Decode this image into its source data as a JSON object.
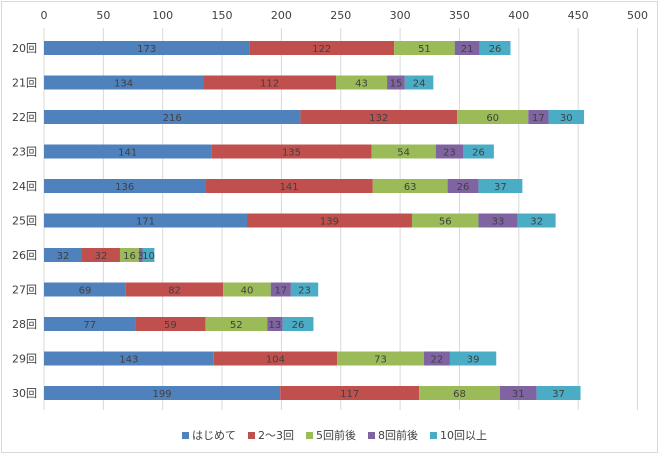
{
  "chart_data": {
    "type": "bar",
    "orientation": "horizontal",
    "stacked": true,
    "categories": [
      "20回",
      "21回",
      "22回",
      "23回",
      "24回",
      "25回",
      "26回",
      "27回",
      "28回",
      "29回",
      "30回"
    ],
    "series": [
      {
        "name": "はじめて",
        "color": "#4f81bd",
        "values": [
          173,
          134,
          216,
          141,
          136,
          171,
          32,
          69,
          77,
          143,
          199
        ]
      },
      {
        "name": "2～3回",
        "color": "#c0504d",
        "values": [
          122,
          112,
          132,
          135,
          141,
          139,
          32,
          82,
          59,
          104,
          117
        ]
      },
      {
        "name": "5回前後",
        "color": "#9bbb59",
        "values": [
          51,
          43,
          60,
          54,
          63,
          56,
          16,
          40,
          52,
          73,
          68
        ]
      },
      {
        "name": "8回前後",
        "color": "#8064a2",
        "values": [
          21,
          15,
          17,
          23,
          26,
          33,
          3,
          17,
          13,
          22,
          31
        ]
      },
      {
        "name": "10回以上",
        "color": "#4bacc6",
        "values": [
          26,
          24,
          30,
          26,
          37,
          32,
          10,
          23,
          26,
          39,
          37
        ]
      }
    ],
    "xlim": [
      0,
      500
    ],
    "xticks": [
      0,
      50,
      100,
      150,
      200,
      250,
      300,
      350,
      400,
      450,
      500
    ],
    "x_axis_position": "top",
    "grid": "vertical",
    "legend": "bottom",
    "data_labels": true
  }
}
